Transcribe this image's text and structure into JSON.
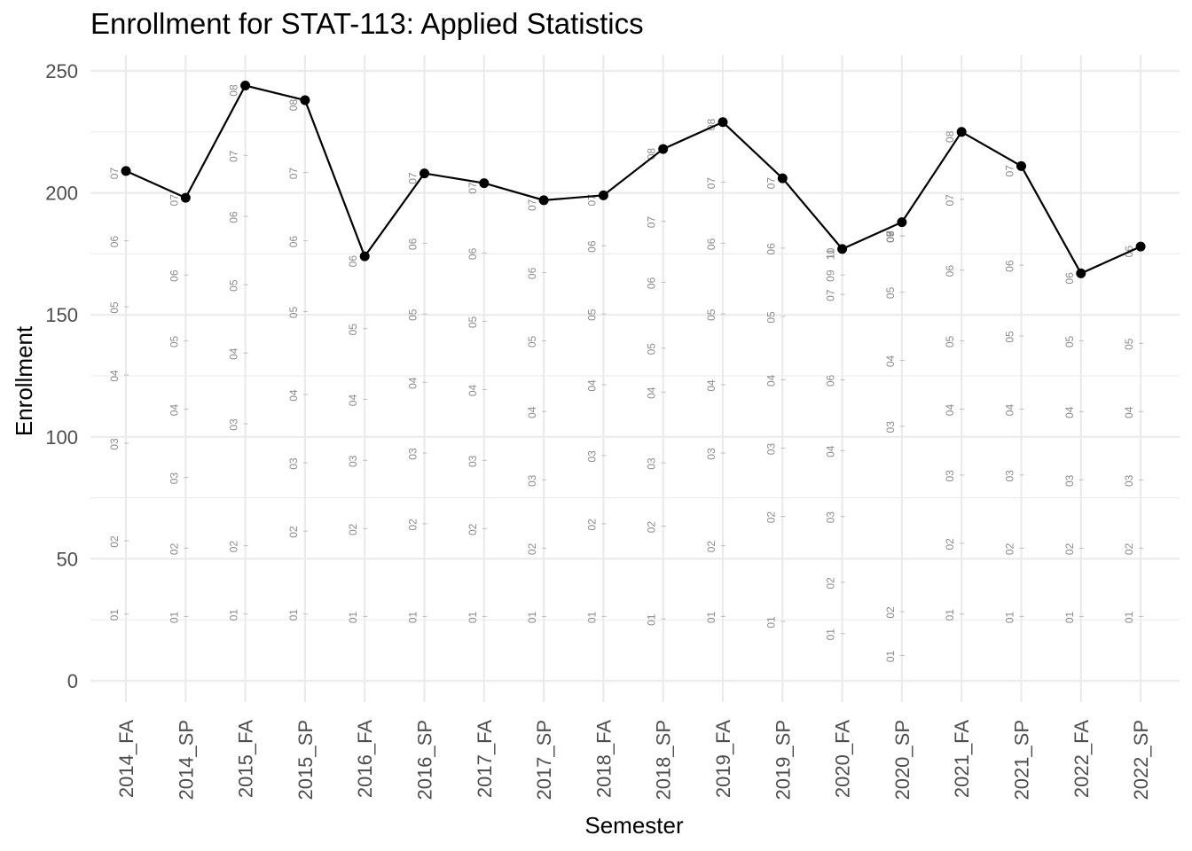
{
  "chart_data": {
    "type": "line",
    "title": "Enrollment for STAT-113: Applied Statistics",
    "xlabel": "Semester",
    "ylabel": "Enrollment",
    "ylim": [
      -10,
      262
    ],
    "yticks": [
      0,
      50,
      100,
      150,
      200,
      250
    ],
    "grid": true,
    "legend": "none",
    "categories": [
      "2014_FA",
      "2014_SP",
      "2015_FA",
      "2015_SP",
      "2016_FA",
      "2016_SP",
      "2017_FA",
      "2017_SP",
      "2018_FA",
      "2018_SP",
      "2019_FA",
      "2019_SP",
      "2020_FA",
      "2020_SP",
      "2021_FA",
      "2021_SP",
      "2022_FA",
      "2022_SP"
    ],
    "series": [
      {
        "values": [
          209,
          198,
          244,
          238,
          174,
          208,
          204,
          197,
          199,
          218,
          229,
          206,
          177,
          188,
          225,
          211,
          167,
          178
        ]
      }
    ],
    "annotations": [
      {
        "x": "2014_FA",
        "points": [
          {
            "label": "01",
            "y": 27
          },
          {
            "label": "02",
            "y": 57
          },
          {
            "label": "03",
            "y": 97
          },
          {
            "label": "04",
            "y": 125
          },
          {
            "label": "05",
            "y": 153
          },
          {
            "label": "06",
            "y": 180
          },
          {
            "label": "07",
            "y": 208
          }
        ]
      },
      {
        "x": "2014_SP",
        "points": [
          {
            "label": "01",
            "y": 26
          },
          {
            "label": "02",
            "y": 54
          },
          {
            "label": "03",
            "y": 83
          },
          {
            "label": "04",
            "y": 111
          },
          {
            "label": "05",
            "y": 139
          },
          {
            "label": "06",
            "y": 166
          },
          {
            "label": "07",
            "y": 197
          }
        ]
      },
      {
        "x": "2015_FA",
        "points": [
          {
            "label": "01",
            "y": 27
          },
          {
            "label": "02",
            "y": 55
          },
          {
            "label": "03",
            "y": 105
          },
          {
            "label": "04",
            "y": 134
          },
          {
            "label": "05",
            "y": 162
          },
          {
            "label": "06",
            "y": 190
          },
          {
            "label": "07",
            "y": 215
          },
          {
            "label": "08",
            "y": 242
          }
        ]
      },
      {
        "x": "2015_SP",
        "points": [
          {
            "label": "01",
            "y": 27
          },
          {
            "label": "02",
            "y": 61
          },
          {
            "label": "03",
            "y": 89
          },
          {
            "label": "04",
            "y": 117
          },
          {
            "label": "05",
            "y": 151
          },
          {
            "label": "06",
            "y": 180
          },
          {
            "label": "07",
            "y": 208
          },
          {
            "label": "08",
            "y": 236
          }
        ]
      },
      {
        "x": "2016_FA",
        "points": [
          {
            "label": "01",
            "y": 26
          },
          {
            "label": "02",
            "y": 62
          },
          {
            "label": "03",
            "y": 90
          },
          {
            "label": "04",
            "y": 115
          },
          {
            "label": "05",
            "y": 144
          },
          {
            "label": "06",
            "y": 172
          }
        ]
      },
      {
        "x": "2016_SP",
        "points": [
          {
            "label": "01",
            "y": 26
          },
          {
            "label": "02",
            "y": 64
          },
          {
            "label": "03",
            "y": 93
          },
          {
            "label": "04",
            "y": 122
          },
          {
            "label": "05",
            "y": 150
          },
          {
            "label": "06",
            "y": 179
          },
          {
            "label": "07",
            "y": 206
          }
        ]
      },
      {
        "x": "2017_FA",
        "points": [
          {
            "label": "01",
            "y": 26
          },
          {
            "label": "02",
            "y": 62
          },
          {
            "label": "03",
            "y": 90
          },
          {
            "label": "04",
            "y": 119
          },
          {
            "label": "05",
            "y": 147
          },
          {
            "label": "06",
            "y": 175
          },
          {
            "label": "07",
            "y": 202
          }
        ]
      },
      {
        "x": "2017_SP",
        "points": [
          {
            "label": "01",
            "y": 26
          },
          {
            "label": "02",
            "y": 54
          },
          {
            "label": "03",
            "y": 82
          },
          {
            "label": "04",
            "y": 110
          },
          {
            "label": "05",
            "y": 139
          },
          {
            "label": "06",
            "y": 167
          },
          {
            "label": "07",
            "y": 195
          }
        ]
      },
      {
        "x": "2018_FA",
        "points": [
          {
            "label": "01",
            "y": 26
          },
          {
            "label": "02",
            "y": 64
          },
          {
            "label": "03",
            "y": 92
          },
          {
            "label": "04",
            "y": 121
          },
          {
            "label": "05",
            "y": 150
          },
          {
            "label": "06",
            "y": 178
          },
          {
            "label": "07",
            "y": 197
          }
        ]
      },
      {
        "x": "2018_SP",
        "points": [
          {
            "label": "01",
            "y": 25
          },
          {
            "label": "02",
            "y": 63
          },
          {
            "label": "03",
            "y": 89
          },
          {
            "label": "04",
            "y": 118
          },
          {
            "label": "05",
            "y": 136
          },
          {
            "label": "06",
            "y": 163
          },
          {
            "label": "07",
            "y": 188
          },
          {
            "label": "08",
            "y": 216
          }
        ]
      },
      {
        "x": "2019_FA",
        "points": [
          {
            "label": "01",
            "y": 26
          },
          {
            "label": "02",
            "y": 55
          },
          {
            "label": "03",
            "y": 93
          },
          {
            "label": "04",
            "y": 121
          },
          {
            "label": "05",
            "y": 150
          },
          {
            "label": "06",
            "y": 179
          },
          {
            "label": "07",
            "y": 204
          },
          {
            "label": "08",
            "y": 228
          }
        ]
      },
      {
        "x": "2019_SP",
        "points": [
          {
            "label": "01",
            "y": 24
          },
          {
            "label": "02",
            "y": 67
          },
          {
            "label": "03",
            "y": 95
          },
          {
            "label": "04",
            "y": 123
          },
          {
            "label": "05",
            "y": 149
          },
          {
            "label": "06",
            "y": 177
          },
          {
            "label": "07",
            "y": 204
          }
        ]
      },
      {
        "x": "2020_FA",
        "points": [
          {
            "label": "01",
            "y": 19
          },
          {
            "label": "02",
            "y": 40
          },
          {
            "label": "03",
            "y": 67
          },
          {
            "label": "04",
            "y": 94
          },
          {
            "label": "06",
            "y": 123
          },
          {
            "label": "07",
            "y": 158
          },
          {
            "label": "09",
            "y": 166
          },
          {
            "label": "10",
            "y": 175
          },
          {
            "label": "11",
            "y": 175
          }
        ]
      },
      {
        "x": "2020_SP",
        "points": [
          {
            "label": "01",
            "y": 10
          },
          {
            "label": "02",
            "y": 28
          },
          {
            "label": "03",
            "y": 104
          },
          {
            "label": "04",
            "y": 131
          },
          {
            "label": "05",
            "y": 159
          },
          {
            "label": "06",
            "y": 182
          },
          {
            "label": "07",
            "y": 182
          },
          {
            "label": "08",
            "y": 182
          },
          {
            "label": "09",
            "y": 182
          }
        ]
      },
      {
        "x": "2021_FA",
        "points": [
          {
            "label": "01",
            "y": 27
          },
          {
            "label": "02",
            "y": 56
          },
          {
            "label": "03",
            "y": 84
          },
          {
            "label": "04",
            "y": 111
          },
          {
            "label": "05",
            "y": 139
          },
          {
            "label": "06",
            "y": 168
          },
          {
            "label": "07",
            "y": 197
          },
          {
            "label": "08",
            "y": 223
          }
        ]
      },
      {
        "x": "2021_SP",
        "points": [
          {
            "label": "01",
            "y": 26
          },
          {
            "label": "02",
            "y": 54
          },
          {
            "label": "03",
            "y": 84
          },
          {
            "label": "04",
            "y": 111
          },
          {
            "label": "05",
            "y": 141
          },
          {
            "label": "06",
            "y": 170
          },
          {
            "label": "07",
            "y": 209
          }
        ]
      },
      {
        "x": "2022_FA",
        "points": [
          {
            "label": "01",
            "y": 26
          },
          {
            "label": "02",
            "y": 54
          },
          {
            "label": "03",
            "y": 82
          },
          {
            "label": "04",
            "y": 110
          },
          {
            "label": "05",
            "y": 139
          },
          {
            "label": "06",
            "y": 165
          }
        ]
      },
      {
        "x": "2022_SP",
        "points": [
          {
            "label": "01",
            "y": 26
          },
          {
            "label": "02",
            "y": 54
          },
          {
            "label": "03",
            "y": 82
          },
          {
            "label": "04",
            "y": 110
          },
          {
            "label": "05",
            "y": 138
          },
          {
            "label": "06",
            "y": 176
          }
        ]
      }
    ]
  }
}
